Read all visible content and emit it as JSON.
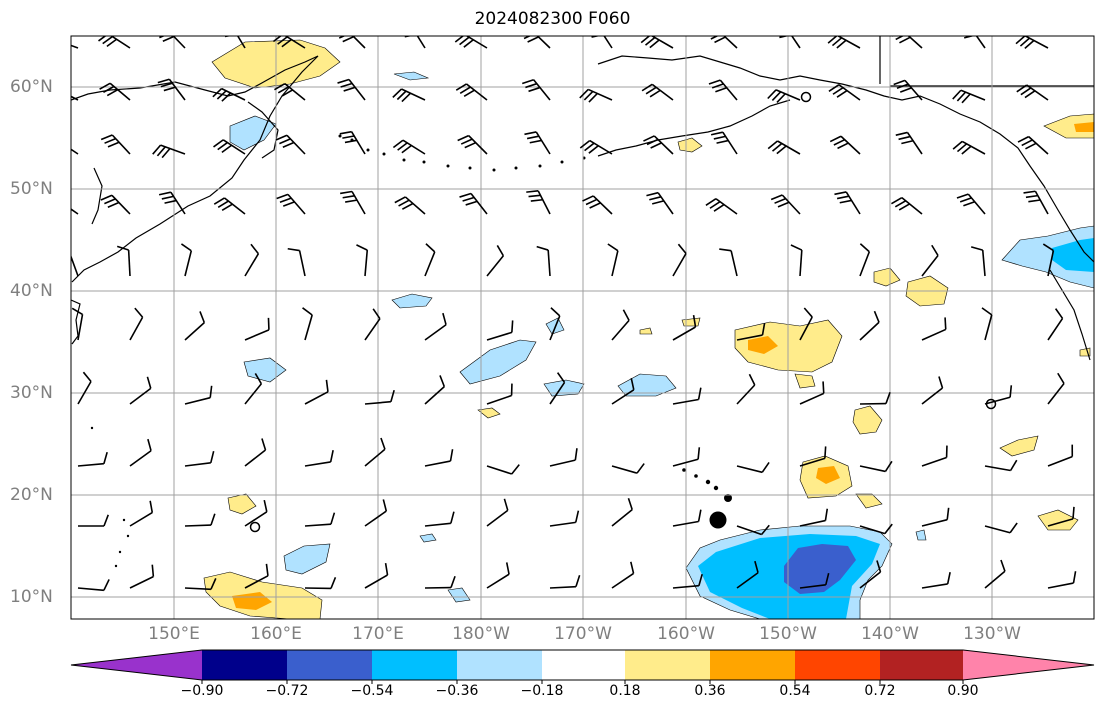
{
  "title": "2024082300 F060",
  "lat_labels": [
    "60°N",
    "50°N",
    "40°N",
    "30°N",
    "20°N",
    "10°N"
  ],
  "lon_labels": [
    "150°E",
    "160°E",
    "170°E",
    "180°W",
    "170°W",
    "160°W",
    "150°W",
    "140°W",
    "130°W"
  ],
  "colorbar": {
    "tick_labels": [
      "−0.90",
      "−0.72",
      "−0.54",
      "−0.36",
      "−0.18",
      "0.18",
      "0.36",
      "0.54",
      "0.72",
      "0.90"
    ],
    "colors": [
      "#9932cc",
      "#00008b",
      "#3a5fcd",
      "#00bfff",
      "#b0e2ff",
      "#ffffff",
      "#ffec8b",
      "#ffa500",
      "#ff4500",
      "#b22222",
      "#ff83aa"
    ]
  },
  "colors": {
    "grid": "#a0a0a0",
    "coast": "#000000",
    "pos_light": "#ffec8b",
    "pos_mid": "#ffa500",
    "neg_light": "#b0e2ff",
    "neg_mid": "#00bfff",
    "neg_dark": "#3a5fcd"
  }
}
